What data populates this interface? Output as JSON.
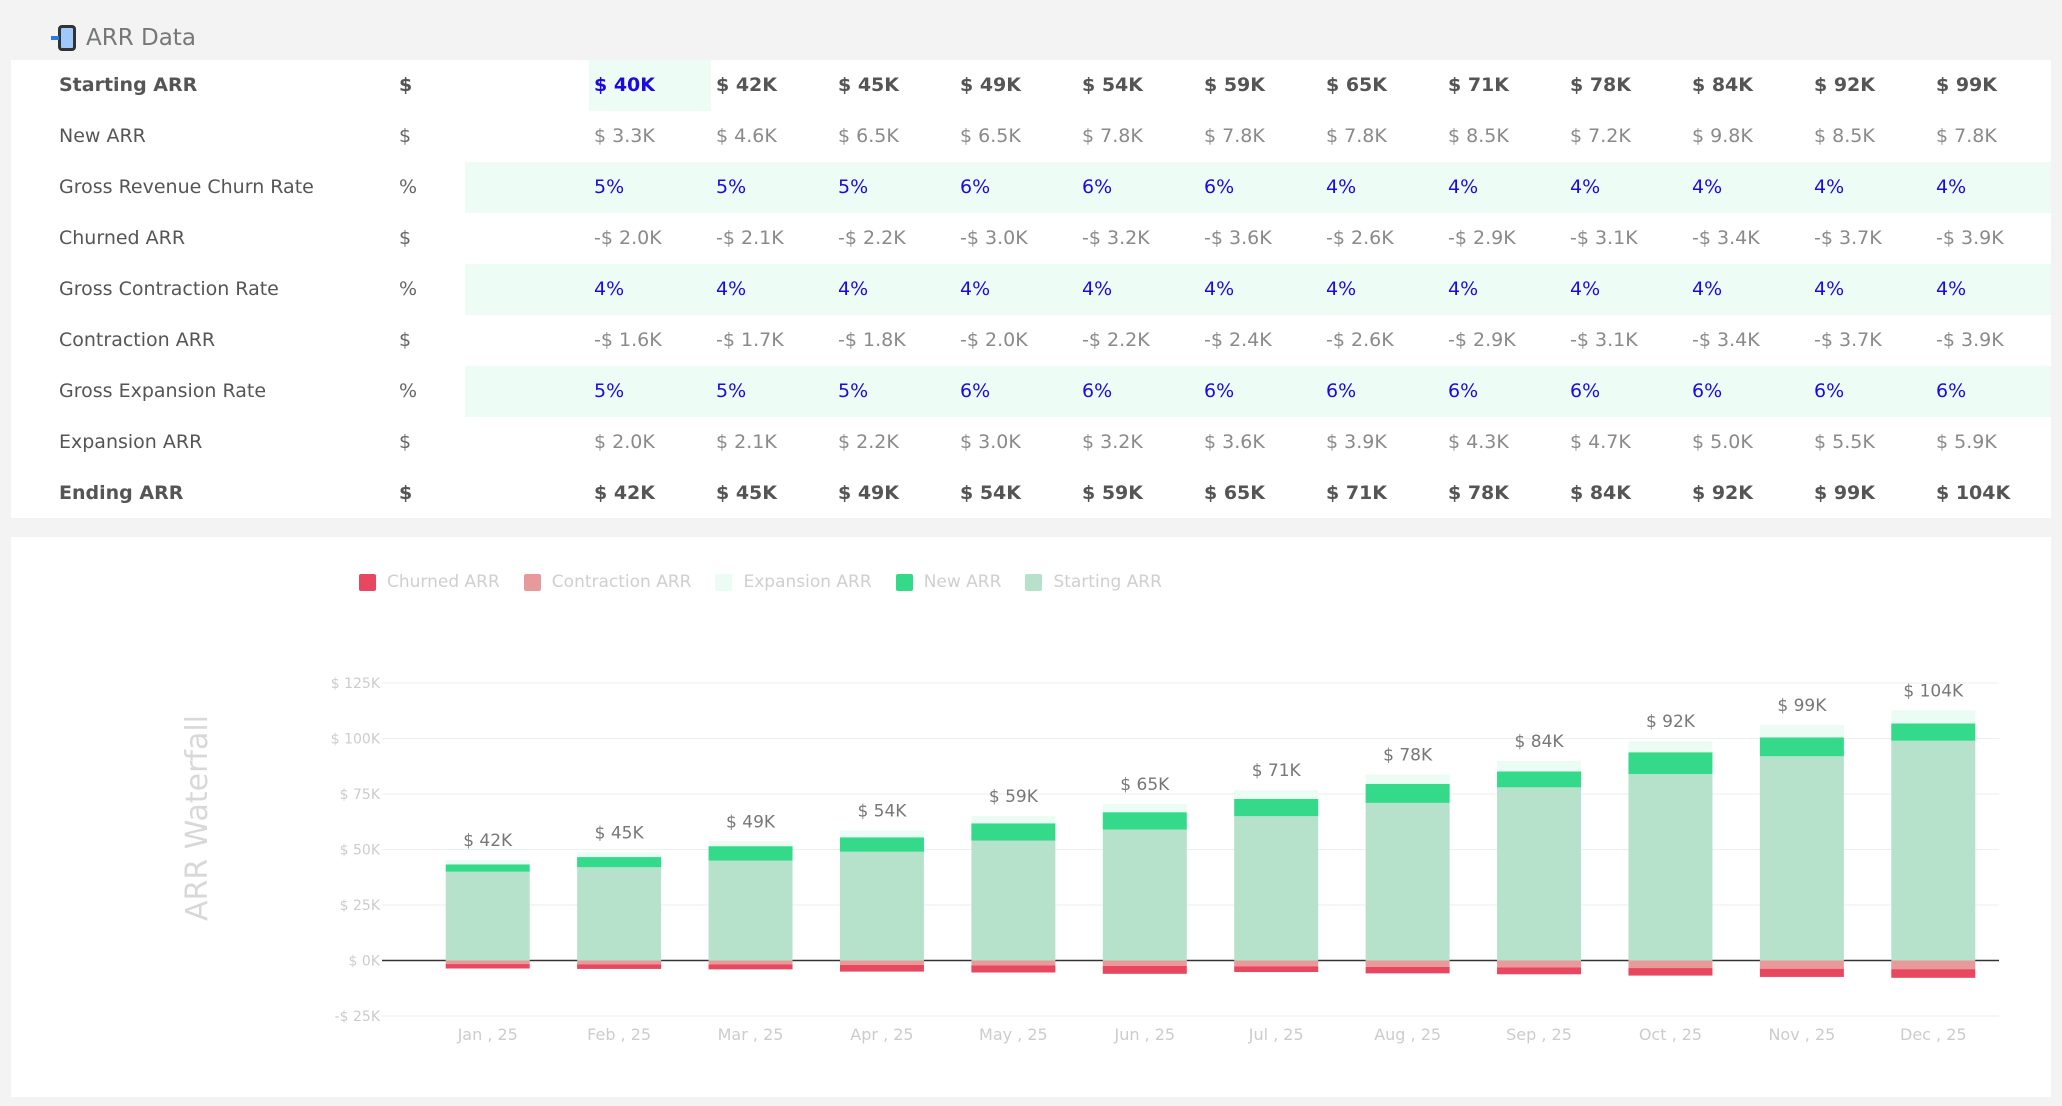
{
  "header": {
    "title": "ARR Data",
    "icon": "mobile-phone-icon"
  },
  "table": {
    "columns": [
      "$ 40K",
      "$ 42K",
      "$ 45K",
      "$ 49K",
      "$ 54K",
      "$ 59K",
      "$ 65K",
      "$ 71K",
      "$ 78K",
      "$ 84K",
      "$ 92K",
      "$ 99K"
    ],
    "rows": [
      {
        "label": "Starting ARR",
        "unit": "$",
        "style": "bold",
        "cells": [
          "$ 40K",
          "$ 42K",
          "$ 45K",
          "$ 49K",
          "$ 54K",
          "$ 59K",
          "$ 65K",
          "$ 71K",
          "$ 78K",
          "$ 84K",
          "$ 92K",
          "$ 99K"
        ]
      },
      {
        "label": "New ARR",
        "unit": "$",
        "style": "normal",
        "cells": [
          "$ 3.3K",
          "$ 4.6K",
          "$ 6.5K",
          "$ 6.5K",
          "$ 7.8K",
          "$ 7.8K",
          "$ 7.8K",
          "$ 8.5K",
          "$ 7.2K",
          "$ 9.8K",
          "$ 8.5K",
          "$ 7.8K"
        ]
      },
      {
        "label": "Gross Revenue Churn Rate",
        "unit": "%",
        "style": "input",
        "cells": [
          "5%",
          "5%",
          "5%",
          "6%",
          "6%",
          "6%",
          "4%",
          "4%",
          "4%",
          "4%",
          "4%",
          "4%"
        ]
      },
      {
        "label": "Churned ARR",
        "unit": "$",
        "style": "normal",
        "cells": [
          "-$ 2.0K",
          "-$ 2.1K",
          "-$ 2.2K",
          "-$ 3.0K",
          "-$ 3.2K",
          "-$ 3.6K",
          "-$ 2.6K",
          "-$ 2.9K",
          "-$ 3.1K",
          "-$ 3.4K",
          "-$ 3.7K",
          "-$ 3.9K"
        ]
      },
      {
        "label": "Gross Contraction Rate",
        "unit": "%",
        "style": "input",
        "cells": [
          "4%",
          "4%",
          "4%",
          "4%",
          "4%",
          "4%",
          "4%",
          "4%",
          "4%",
          "4%",
          "4%",
          "4%"
        ]
      },
      {
        "label": "Contraction ARR",
        "unit": "$",
        "style": "normal",
        "cells": [
          "-$ 1.6K",
          "-$ 1.7K",
          "-$ 1.8K",
          "-$ 2.0K",
          "-$ 2.2K",
          "-$ 2.4K",
          "-$ 2.6K",
          "-$ 2.9K",
          "-$ 3.1K",
          "-$ 3.4K",
          "-$ 3.7K",
          "-$ 3.9K"
        ]
      },
      {
        "label": "Gross Expansion Rate",
        "unit": "%",
        "style": "input",
        "cells": [
          "5%",
          "5%",
          "5%",
          "6%",
          "6%",
          "6%",
          "6%",
          "6%",
          "6%",
          "6%",
          "6%",
          "6%"
        ]
      },
      {
        "label": "Expansion ARR",
        "unit": "$",
        "style": "normal",
        "cells": [
          "$ 2.0K",
          "$ 2.1K",
          "$ 2.2K",
          "$ 3.0K",
          "$ 3.2K",
          "$ 3.6K",
          "$ 3.9K",
          "$ 4.3K",
          "$ 4.7K",
          "$ 5.0K",
          "$ 5.5K",
          "$ 5.9K"
        ]
      },
      {
        "label": "Ending ARR",
        "unit": "$",
        "style": "bold",
        "cells": [
          "$ 42K",
          "$ 45K",
          "$ 49K",
          "$ 54K",
          "$ 59K",
          "$ 65K",
          "$ 71K",
          "$ 78K",
          "$ 84K",
          "$ 92K",
          "$ 99K",
          "$ 104K"
        ]
      }
    ]
  },
  "colors": {
    "churned": "#e8485f",
    "contraction": "#e89a9a",
    "expansion": "#eafcf4",
    "new": "#34d98a",
    "starting": "#b6e2cc",
    "input_text": "#1a0ae0",
    "highlight_row": "#edfdf6"
  },
  "chart_data": {
    "type": "bar",
    "stacked": true,
    "ylabel": "ARR Waterfall",
    "ylim": [
      -25000,
      125000
    ],
    "yticks": [
      -25000,
      0,
      25000,
      50000,
      75000,
      100000,
      125000
    ],
    "ytick_labels": [
      "-$ 25K",
      "$ 0K",
      "$ 25K",
      "$ 50K",
      "$ 75K",
      "$ 100K",
      "$ 125K"
    ],
    "categories": [
      "Jan , 25",
      "Feb , 25",
      "Mar , 25",
      "Apr , 25",
      "May , 25",
      "Jun , 25",
      "Jul , 25",
      "Aug , 25",
      "Sep , 25",
      "Oct , 25",
      "Nov , 25",
      "Dec , 25"
    ],
    "legend": [
      "Churned ARR",
      "Contraction ARR",
      "Expansion ARR",
      "New ARR",
      "Starting ARR"
    ],
    "legend_position": "top-left",
    "grid": true,
    "series": [
      {
        "name": "Starting ARR",
        "values": [
          40000,
          42000,
          45000,
          49000,
          54000,
          59000,
          65000,
          71000,
          78000,
          84000,
          92000,
          99000
        ]
      },
      {
        "name": "New ARR",
        "values": [
          3300,
          4600,
          6500,
          6500,
          7800,
          7800,
          7800,
          8500,
          7200,
          9800,
          8500,
          7800
        ]
      },
      {
        "name": "Expansion ARR",
        "values": [
          2000,
          2100,
          2200,
          3000,
          3200,
          3600,
          3900,
          4300,
          4700,
          5000,
          5500,
          5900
        ]
      },
      {
        "name": "Contraction ARR",
        "values": [
          -1600,
          -1700,
          -1800,
          -2000,
          -2200,
          -2400,
          -2600,
          -2900,
          -3100,
          -3400,
          -3700,
          -3900
        ]
      },
      {
        "name": "Churned ARR",
        "values": [
          -2000,
          -2100,
          -2200,
          -3000,
          -3200,
          -3600,
          -2600,
          -2900,
          -3100,
          -3400,
          -3700,
          -3900
        ]
      }
    ],
    "data_labels": [
      "$ 42K",
      "$ 45K",
      "$ 49K",
      "$ 54K",
      "$ 59K",
      "$ 65K",
      "$ 71K",
      "$ 78K",
      "$ 84K",
      "$ 92K",
      "$ 99K",
      "$ 104K"
    ]
  }
}
